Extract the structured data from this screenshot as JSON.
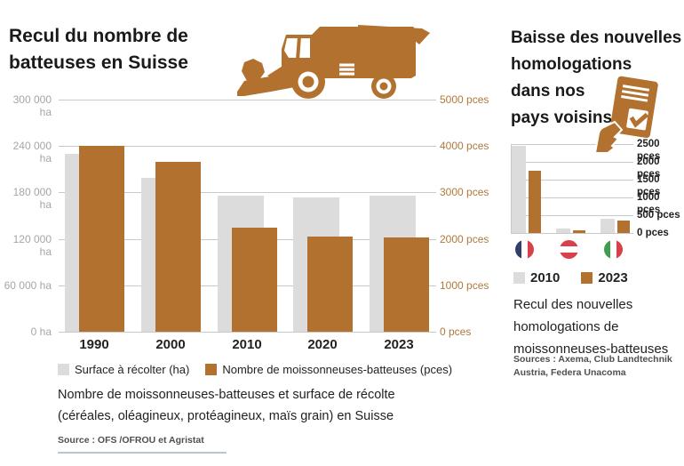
{
  "colors": {
    "brown": "#b2712e",
    "light_gray": "#dcdcdc",
    "gridline": "#c9c9c9",
    "left_axis_label": "#a6a6a6",
    "right_axis_label": "#b0783c",
    "mini_axis_label": "#1f1f1f",
    "text_dark": "#1a1a1a",
    "source_gray": "#4f4f4f",
    "flag_blue": "#333f6b",
    "flag_red": "#d8404a",
    "flag_green": "#3f9e4d",
    "footer_rule_blue": "#b7c6d3"
  },
  "left_panel": {
    "title": "Recul du nombre de batteuses en Suisse",
    "left_axis_ticks": [
      "300 000 ha",
      "240 000 ha",
      "180 000 ha",
      "120 000 ha",
      "60 000 ha",
      "0 ha"
    ],
    "right_axis_ticks": [
      "5000 pces",
      "4000 pces",
      "3000 pces",
      "2000 pces",
      "1000 pces",
      "0 pces"
    ],
    "legend": [
      {
        "label": "Surface à récolter (ha)",
        "color": "#dcdcdc"
      },
      {
        "label": "Nombre de moissonneuses-batteuses (pces)",
        "color": "#b2712e"
      }
    ],
    "caption_line1": "Nombre de moissonneuses-batteuses et surface de récolte",
    "caption_line2": "(céréales, oléagineux, protéagineux, maïs grain) en Suisse",
    "source": "Source : OFS /OFROU et Agristat"
  },
  "right_panel": {
    "title_lines": [
      "Baisse des nouvelles",
      "homologations",
      "dans nos",
      "pays voisins"
    ],
    "axis_ticks": [
      "2500 pces",
      "2000 pces",
      "1500 pces",
      "1000 pces",
      "500 pces",
      "0 pces"
    ],
    "legend": [
      {
        "label": "2010",
        "color": "#dcdcdc"
      },
      {
        "label": "2023",
        "color": "#b2712e"
      }
    ],
    "caption_lines": [
      "Recul des nouvelles",
      "homologations de",
      "moissonneuses-batteuses"
    ],
    "source_lines": [
      "Sources : Axema, Club Landtechnik",
      "Austria, Federa Unacoma"
    ],
    "flags": [
      "france",
      "austria",
      "italy"
    ]
  },
  "chart_data": [
    {
      "type": "bar",
      "title": "Recul du nombre de batteuses en Suisse",
      "categories": [
        "1990",
        "2000",
        "2010",
        "2020",
        "2023"
      ],
      "series": [
        {
          "name": "Surface à récolter (ha)",
          "axis": "left",
          "unit": "ha",
          "color": "#dcdcdc",
          "values": [
            230000,
            199000,
            176000,
            173000,
            176000
          ]
        },
        {
          "name": "Nombre de moissonneuses-batteuses (pces)",
          "axis": "right",
          "unit": "pces",
          "color": "#b2712e",
          "values": [
            4000,
            3650,
            2250,
            2050,
            2040
          ]
        }
      ],
      "left_axis": {
        "unit": "ha",
        "range": [
          0,
          300000
        ],
        "tick_step": 60000
      },
      "right_axis": {
        "unit": "pces",
        "range": [
          0,
          5000
        ],
        "tick_step": 1000
      },
      "grid": true,
      "legend_position": "bottom"
    },
    {
      "type": "bar",
      "title": "Baisse des nouvelles homologations dans nos pays voisins",
      "categories": [
        "France",
        "Autriche",
        "Italie"
      ],
      "series": [
        {
          "name": "2010",
          "color": "#dcdcdc",
          "values": [
            2450,
            130,
            410
          ]
        },
        {
          "name": "2023",
          "color": "#b2712e",
          "values": [
            1750,
            70,
            360
          ]
        }
      ],
      "y_axis": {
        "unit": "pces",
        "range": [
          0,
          2500
        ],
        "tick_step": 500
      },
      "grid": true,
      "legend_position": "bottom"
    }
  ]
}
